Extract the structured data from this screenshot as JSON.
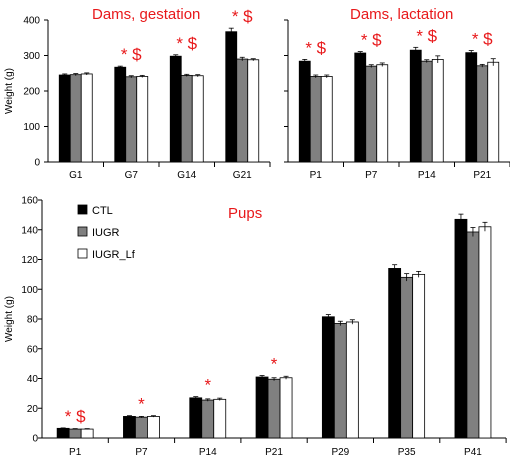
{
  "colors": {
    "CTL": "#000000",
    "IUGR": "#808080",
    "IUGR_Lf": "#ffffff",
    "annotation": "#e8191b",
    "axis": "#000000"
  },
  "chart_data": [
    {
      "type": "bar",
      "panel": "top-left",
      "title": "Dams, gestation",
      "ylabel": "Weight (g)",
      "ylim": [
        0,
        400
      ],
      "yticks": [
        0,
        100,
        200,
        300,
        400
      ],
      "categories": [
        "G1",
        "G7",
        "G14",
        "G21"
      ],
      "series": [
        {
          "name": "CTL",
          "values": [
            245,
            267,
            298,
            367
          ],
          "errors": [
            3,
            3,
            4,
            10
          ]
        },
        {
          "name": "IUGR",
          "values": [
            246,
            240,
            244,
            290
          ],
          "errors": [
            3,
            3,
            3,
            5
          ]
        },
        {
          "name": "IUGR_Lf",
          "values": [
            248,
            241,
            243,
            288
          ],
          "errors": [
            3,
            3,
            3,
            3
          ]
        }
      ],
      "annotations": [
        "",
        "* $",
        "* $",
        "* $"
      ]
    },
    {
      "type": "bar",
      "panel": "top-right",
      "title": "Dams, lactation",
      "ylabel": "",
      "ylim": [
        0,
        400
      ],
      "yticks": [
        0,
        100,
        200,
        300,
        400
      ],
      "categories": [
        "P1",
        "P7",
        "P14",
        "P21"
      ],
      "series": [
        {
          "name": "CTL",
          "values": [
            284,
            307,
            315,
            308
          ],
          "errors": [
            5,
            4,
            8,
            6
          ]
        },
        {
          "name": "IUGR",
          "values": [
            241,
            270,
            284,
            271
          ],
          "errors": [
            4,
            4,
            4,
            4
          ]
        },
        {
          "name": "IUGR_Lf",
          "values": [
            241,
            274,
            289,
            281
          ],
          "errors": [
            4,
            5,
            10,
            10
          ]
        }
      ],
      "annotations": [
        "* $",
        "* $",
        "* $",
        "* $"
      ]
    },
    {
      "type": "bar",
      "panel": "bottom",
      "title": "Pups",
      "ylabel": "Weight (g)",
      "ylim": [
        0,
        160
      ],
      "yticks": [
        0,
        20,
        40,
        60,
        80,
        100,
        120,
        140,
        160
      ],
      "categories": [
        "P1",
        "P7",
        "P14",
        "P21",
        "P29",
        "P35",
        "P41"
      ],
      "series": [
        {
          "name": "CTL",
          "values": [
            6.5,
            14.5,
            27,
            41,
            81.5,
            114,
            147
          ],
          "errors": [
            0.3,
            0.5,
            0.8,
            1,
            1.5,
            2.5,
            3.5
          ]
        },
        {
          "name": "IUGR",
          "values": [
            6,
            14,
            25.5,
            39.5,
            77,
            108,
            138.5
          ],
          "errors": [
            0.3,
            0.5,
            0.8,
            1,
            1.5,
            2.5,
            3
          ]
        },
        {
          "name": "IUGR_Lf",
          "values": [
            6,
            14.5,
            26,
            40.5,
            78,
            110,
            142
          ],
          "errors": [
            0.3,
            0.5,
            0.8,
            1,
            1.5,
            2,
            3
          ]
        }
      ],
      "annotations": [
        "* $",
        "*",
        "*",
        "*",
        "",
        "",
        ""
      ],
      "legend": {
        "placement": "top-left",
        "entries": [
          "CTL",
          "IUGR",
          "IUGR_Lf"
        ]
      }
    }
  ]
}
